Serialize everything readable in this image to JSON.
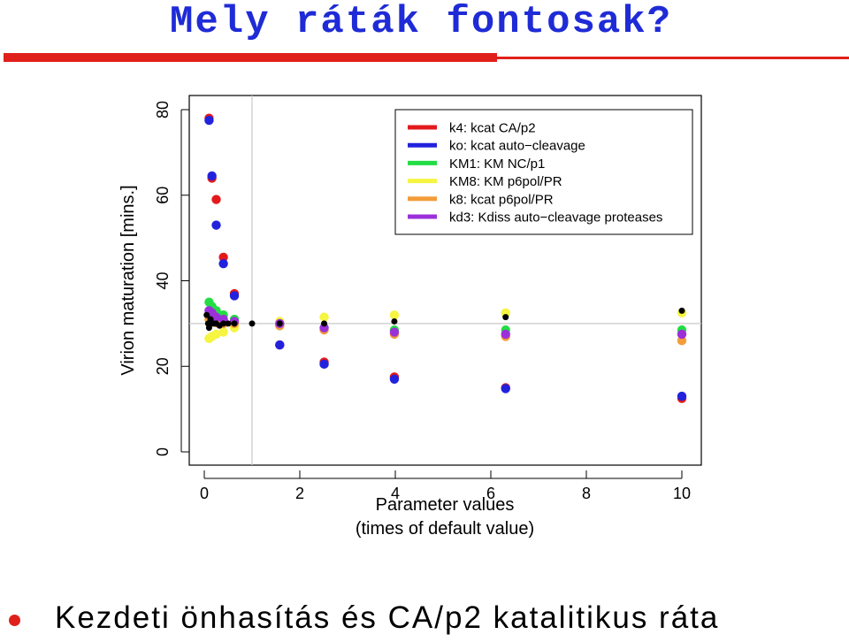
{
  "slide": {
    "title": "Mely ráták fontosak?",
    "bullet": "Kezdeti önhasítás és CA/p2 katalitikus ráta",
    "accent_color": "#e0201b",
    "title_color": "#1f2bd6"
  },
  "chart_data": {
    "type": "scatter",
    "title": "",
    "xlabel_lines": [
      "Parameter values",
      "(times of default value)"
    ],
    "ylabel": "Virion maturation [mins.]",
    "xlim": [
      0,
      10
    ],
    "ylim": [
      0,
      80
    ],
    "x_ticks": [
      0,
      2,
      4,
      6,
      8,
      10
    ],
    "y_ticks": [
      0,
      20,
      40,
      60,
      80
    ],
    "reference_lines": {
      "x": 1,
      "y": 30
    },
    "legend_position": "top-right",
    "series": [
      {
        "name": "k4: kcat CA/p2",
        "color": "#e31a1c",
        "x": [
          0.1,
          0.16,
          0.25,
          0.4,
          0.63,
          1.58,
          2.51,
          3.98,
          6.31,
          10
        ],
        "y": [
          78,
          64,
          59,
          45.5,
          37,
          25,
          21,
          17.5,
          15,
          12.5
        ]
      },
      {
        "name": "ko: kcat auto−cleavage",
        "color": "#2222dd",
        "x": [
          0.1,
          0.16,
          0.25,
          0.4,
          0.63,
          1.58,
          2.51,
          3.98,
          6.31,
          10
        ],
        "y": [
          77.5,
          64.5,
          53,
          44,
          36.5,
          25,
          20.5,
          17,
          14.8,
          13
        ]
      },
      {
        "name": "KM1: KM NC/p1",
        "color": "#22dd44",
        "x": [
          0.1,
          0.16,
          0.25,
          0.4,
          0.63,
          1.58,
          2.51,
          3.98,
          6.31,
          10
        ],
        "y": [
          35,
          34,
          33,
          32,
          31,
          29.5,
          29,
          28.5,
          28.5,
          28.5
        ]
      },
      {
        "name": "KM8: KM p6pol/PR",
        "color": "#f5f542",
        "x": [
          0.1,
          0.16,
          0.25,
          0.4,
          0.63,
          1.58,
          2.51,
          3.98,
          6.31,
          10
        ],
        "y": [
          26.5,
          27,
          27.5,
          28,
          29,
          30.5,
          31.5,
          32,
          32.5,
          32.5
        ]
      },
      {
        "name": "k8: kcat p6pol/PR",
        "color": "#f39c3a",
        "x": [
          0.1,
          0.16,
          0.25,
          0.4,
          0.63,
          1.58,
          2.51,
          3.98,
          6.31,
          10
        ],
        "y": [
          31,
          30.5,
          30.2,
          30,
          30,
          29.5,
          28.5,
          27.5,
          27,
          26
        ]
      },
      {
        "name": "kd3: Kdiss auto−cleavage proteases",
        "color": "#9b30d9",
        "x": [
          0.1,
          0.16,
          0.25,
          0.4,
          0.63,
          1.58,
          2.51,
          3.98,
          6.31,
          10
        ],
        "y": [
          33,
          32.5,
          31.5,
          31,
          30.5,
          30,
          29,
          28,
          27.5,
          27.5
        ]
      },
      {
        "name": "",
        "color": "#000000",
        "small": true,
        "x": [
          0.05,
          0.08,
          0.1,
          0.13,
          0.16,
          0.2,
          0.25,
          0.32,
          0.4,
          0.5,
          0.63,
          1,
          1.58,
          2.51,
          3.98,
          6.31,
          10
        ],
        "y": [
          32,
          30,
          29,
          31,
          30,
          30,
          30,
          29.5,
          30,
          30,
          30,
          30,
          30,
          30,
          30.5,
          31.5,
          33
        ]
      }
    ]
  }
}
